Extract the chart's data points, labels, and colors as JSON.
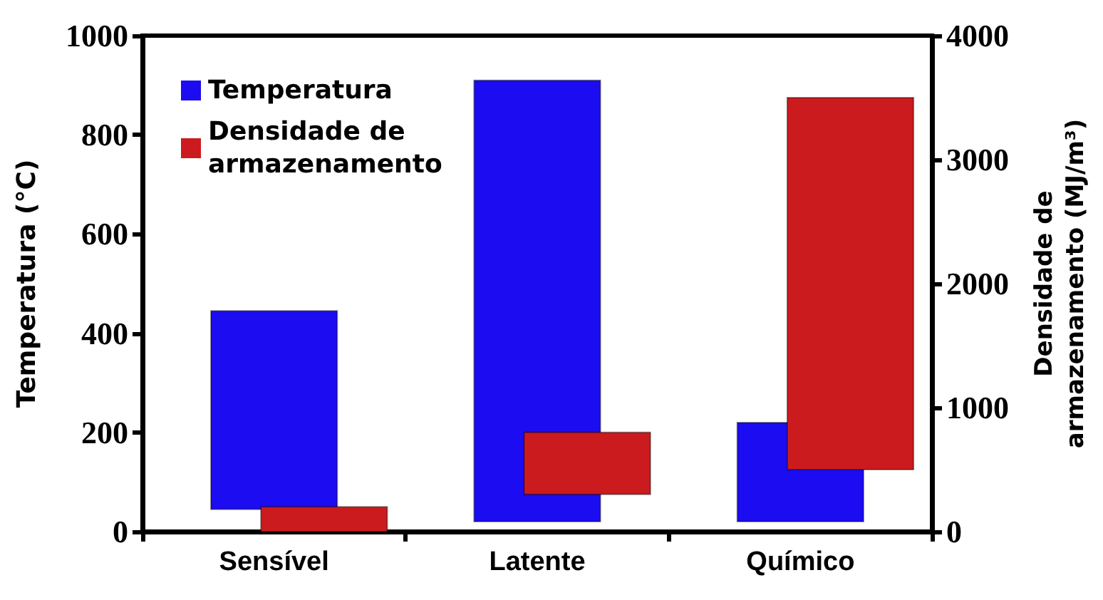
{
  "chart_data": {
    "type": "bar",
    "categories": [
      "Sensível",
      "Latente",
      "Químico"
    ],
    "ylabel": "Temperatura (°C)",
    "y2label": "Densidade de armazenamento (MJ/m³)",
    "series": [
      {
        "name": "Temperatura",
        "color": "#1c0cf2",
        "values": [
          400,
          890,
          200
        ],
        "base": [
          45,
          20,
          20
        ]
      },
      {
        "name": "Densidade de armazenamento",
        "color": "#cc1b1e",
        "axis": "y2",
        "values": [
          200,
          500,
          3000
        ],
        "base": [
          0,
          300,
          500
        ]
      }
    ],
    "ylim": [
      0,
      1000
    ],
    "yticks": [
      0,
      200,
      400,
      600,
      800,
      1000
    ],
    "y2lim": [
      0,
      4000
    ],
    "y2ticks": [
      0,
      1000,
      2000,
      3000,
      4000
    ],
    "legend": "top left"
  }
}
